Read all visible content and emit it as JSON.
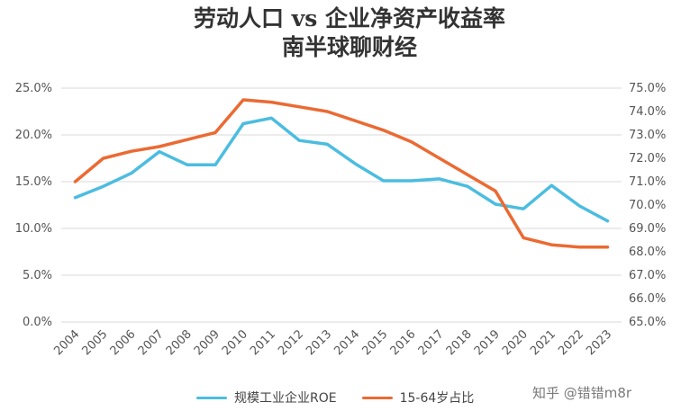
{
  "chart_data": {
    "type": "line",
    "title": "劳动人口 vs 企业净资产收益率",
    "subtitle": "南半球聊财经",
    "categories": [
      "2004",
      "2005",
      "2006",
      "2007",
      "2008",
      "2009",
      "2010",
      "2011",
      "2012",
      "2013",
      "2014",
      "2015",
      "2016",
      "2017",
      "2018",
      "2019",
      "2020",
      "2021",
      "2022",
      "2023"
    ],
    "series": [
      {
        "name": "规模工业企业ROE",
        "axis": "left",
        "color": "#4bbde0",
        "values": [
          13.3,
          14.5,
          15.9,
          18.2,
          16.8,
          16.8,
          21.2,
          21.8,
          19.4,
          19.0,
          16.9,
          15.1,
          15.1,
          15.3,
          14.5,
          12.6,
          12.1,
          14.6,
          12.4,
          10.8
        ]
      },
      {
        "name": "15-64岁占比",
        "axis": "right",
        "color": "#eb6a32",
        "values": [
          71.0,
          72.0,
          72.3,
          72.5,
          72.8,
          73.1,
          74.5,
          74.4,
          74.2,
          74.0,
          73.6,
          73.2,
          72.7,
          72.0,
          71.3,
          70.6,
          68.6,
          68.3,
          68.2,
          68.2
        ]
      }
    ],
    "y_left": {
      "min": 0,
      "max": 25,
      "ticks": [
        "0.0%",
        "5.0%",
        "10.0%",
        "15.0%",
        "20.0%",
        "25.0%"
      ]
    },
    "y_right": {
      "min": 65,
      "max": 75,
      "ticks": [
        "65.0%",
        "66.0%",
        "67.0%",
        "68.0%",
        "69.0%",
        "70.0%",
        "71.0%",
        "72.0%",
        "73.0%",
        "74.0%",
        "75.0%"
      ]
    },
    "grid": true,
    "legend": "bottom"
  },
  "watermark": "知乎 @错错m8r"
}
